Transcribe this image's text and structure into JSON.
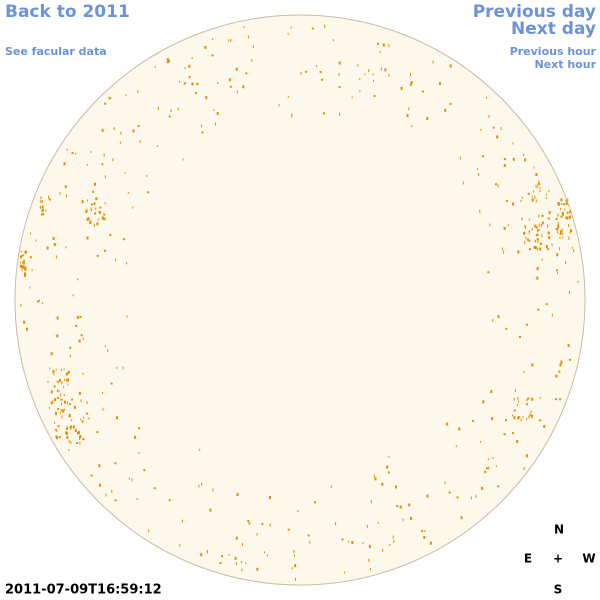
{
  "header": {
    "back_link": "Back to 2011",
    "facular_link": "See facular data",
    "previous_day": "Previous day",
    "next_day": "Next day",
    "previous_hour": "Previous hour",
    "next_hour": "Next hour"
  },
  "timestamp": "2011-07-09T16:59:12",
  "compass": {
    "north": "N",
    "east": "E",
    "center": "+",
    "west": "W",
    "south": "S"
  }
}
